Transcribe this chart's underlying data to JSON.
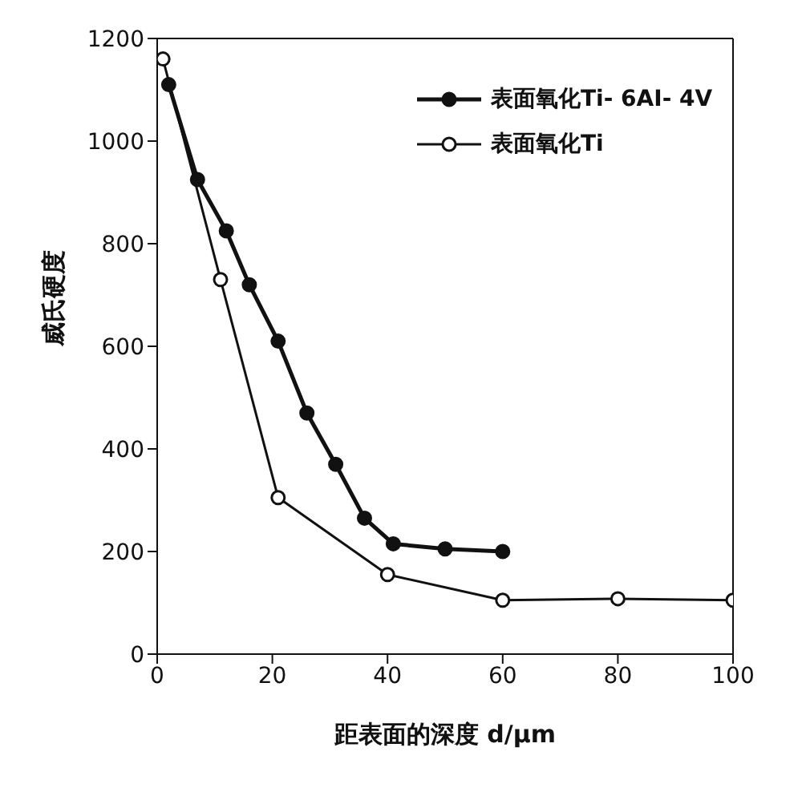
{
  "chart_data": {
    "type": "line",
    "xlabel": "距表面的深度 d/μm",
    "ylabel": "威氏硬度",
    "xlim": [
      0,
      100
    ],
    "xticks": [
      0,
      20,
      40,
      60,
      80,
      100
    ],
    "ylim": [
      0,
      1200
    ],
    "yticks": [
      0,
      200,
      400,
      600,
      800,
      1000,
      1200
    ],
    "legend": "top right",
    "marker": "circle",
    "series": [
      {
        "name": "表面氧化Ti- 6AI- 4V",
        "color": "#111111",
        "x": [
          2,
          7,
          12,
          16,
          21,
          26,
          31,
          36,
          41,
          50,
          60
        ],
        "values": [
          1110,
          925,
          825,
          720,
          610,
          470,
          370,
          265,
          215,
          205,
          200
        ]
      },
      {
        "name": "表面氧化Ti",
        "color": "#111111",
        "x": [
          1,
          11,
          21,
          40,
          60,
          80,
          100
        ],
        "values": [
          1160,
          730,
          305,
          155,
          105,
          108,
          105
        ]
      }
    ]
  }
}
